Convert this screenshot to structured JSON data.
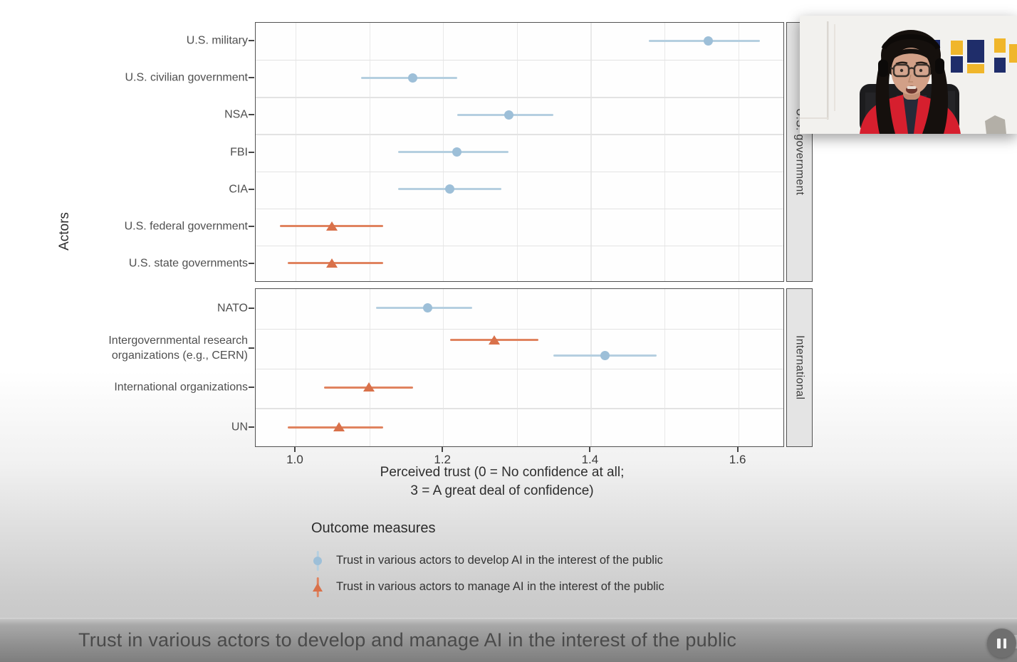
{
  "player": {
    "caption": "Trust in various actors to develop and manage AI in the interest of the public",
    "pause_icon": "pause-icon"
  },
  "chart": {
    "y_axis_title": "Actors",
    "x_axis_title_line1": "Perceived trust (0 = No confidence at all;",
    "x_axis_title_line2": "3 = A great deal of confidence)"
  },
  "legend": {
    "title": "Outcome measures"
  },
  "colors": {
    "develop_marker": "#9dbfd8",
    "develop_line": "#b5cfe0",
    "manage_marker": "#d9714a",
    "manage_line": "#e0835f",
    "panel_border": "#525252",
    "strip_bg": "#e4e4e4",
    "caption_text": "#4a4a4a",
    "flag_navy": "#1f2d6a",
    "flag_gold": "#f0b62b",
    "cardigan_red": "#d61f2e"
  },
  "chart_data": {
    "type": "pointrange",
    "orientation": "horizontal",
    "title": "Trust in various actors to develop and manage AI in the interest of the public",
    "x_axis": {
      "label": "Perceived trust (0 = No confidence at all; 3 = A great deal of confidence)",
      "range": [
        0.95,
        1.66
      ],
      "grid_step": 0.1,
      "ticks": [
        {
          "v": 1.0,
          "label": "1.0"
        },
        {
          "v": 1.2,
          "label": "1.2"
        },
        {
          "v": 1.4,
          "label": "1.4"
        },
        {
          "v": 1.6,
          "label": "1.6"
        }
      ]
    },
    "y_axis": {
      "label": "Actors"
    },
    "legend_position": "bottom-left",
    "series": [
      {
        "name": "develop",
        "label": "Trust in various actors to develop AI in the interest of the public",
        "marker": "circle",
        "marker_color": "#9dbfd8",
        "line_color": "#b5cfe0"
      },
      {
        "name": "manage",
        "label": "Trust in various actors to manage AI in the interest of the public",
        "marker": "triangle",
        "marker_color": "#d9714a",
        "line_color": "#e0835f"
      }
    ],
    "panels": [
      {
        "facet": "U.S. government",
        "rows": [
          {
            "actor": "U.S. military",
            "points": [
              {
                "measure": "develop",
                "value": 1.56,
                "ci_low": 1.48,
                "ci_high": 1.63
              }
            ]
          },
          {
            "actor": "U.S. civilian government",
            "points": [
              {
                "measure": "develop",
                "value": 1.16,
                "ci_low": 1.09,
                "ci_high": 1.22
              }
            ]
          },
          {
            "actor": "NSA",
            "points": [
              {
                "measure": "develop",
                "value": 1.29,
                "ci_low": 1.22,
                "ci_high": 1.35
              }
            ]
          },
          {
            "actor": "FBI",
            "points": [
              {
                "measure": "develop",
                "value": 1.22,
                "ci_low": 1.14,
                "ci_high": 1.29
              }
            ]
          },
          {
            "actor": "CIA",
            "points": [
              {
                "measure": "develop",
                "value": 1.21,
                "ci_low": 1.14,
                "ci_high": 1.28
              }
            ]
          },
          {
            "actor": "U.S. federal government",
            "points": [
              {
                "measure": "manage",
                "value": 1.05,
                "ci_low": 0.98,
                "ci_high": 1.12
              }
            ]
          },
          {
            "actor": "U.S. state governments",
            "points": [
              {
                "measure": "manage",
                "value": 1.05,
                "ci_low": 0.99,
                "ci_high": 1.12
              }
            ]
          }
        ]
      },
      {
        "facet": "International",
        "rows": [
          {
            "actor": "NATO",
            "points": [
              {
                "measure": "develop",
                "value": 1.18,
                "ci_low": 1.11,
                "ci_high": 1.24
              }
            ]
          },
          {
            "actor": "Intergovernmental research organizations (e.g., CERN)",
            "label_lines": [
              "Intergovernmental research",
              "organizations (e.g., CERN)"
            ],
            "points": [
              {
                "measure": "manage",
                "value": 1.27,
                "ci_low": 1.21,
                "ci_high": 1.33
              },
              {
                "measure": "develop",
                "value": 1.42,
                "ci_low": 1.35,
                "ci_high": 1.49
              }
            ]
          },
          {
            "actor": "International organizations",
            "points": [
              {
                "measure": "manage",
                "value": 1.1,
                "ci_low": 1.04,
                "ci_high": 1.16
              }
            ]
          },
          {
            "actor": "UN",
            "points": [
              {
                "measure": "manage",
                "value": 1.06,
                "ci_low": 0.99,
                "ci_high": 1.12
              }
            ]
          }
        ]
      }
    ]
  }
}
